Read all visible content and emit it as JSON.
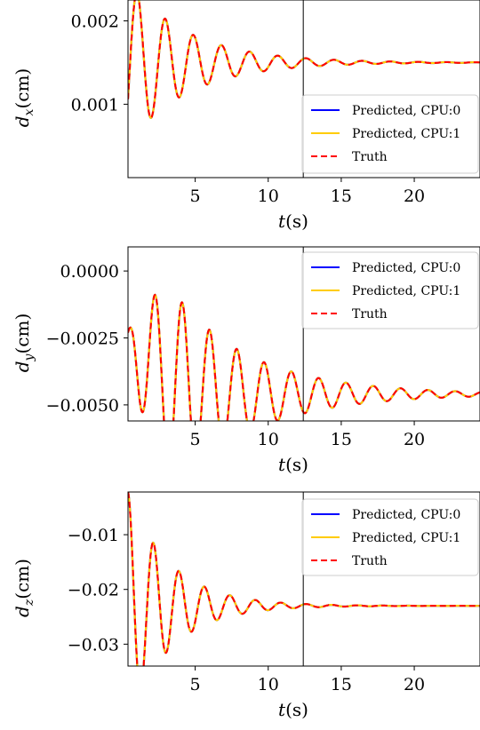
{
  "chart_data": [
    {
      "type": "line",
      "id": "dx",
      "ylabel": {
        "var": "d",
        "sub": "x",
        "unit": "(cm)"
      },
      "xlabel": {
        "var": "t",
        "unit": "(s)"
      },
      "xlim": [
        0.4,
        24.5
      ],
      "ylim": [
        0.00012,
        0.00225
      ],
      "x_ticks": [
        5,
        10,
        15,
        20
      ],
      "x_tick_labels": [
        "5",
        "10",
        "15",
        "20"
      ],
      "y_ticks": [
        0.001,
        0.002
      ],
      "y_tick_labels": [
        "0.001",
        "0.002"
      ],
      "vline_x": 12.4,
      "signal": {
        "equilibrium": 0.0015,
        "amplitude": 0.00097,
        "decay": 0.24,
        "omega": 3.26,
        "phase": -2.04
      },
      "legend": {
        "placement": "lower right",
        "entries": [
          {
            "label": "Predicted, CPU:0",
            "color": "#0000ff",
            "style": "solid"
          },
          {
            "label": "Predicted, CPU:1",
            "color": "#ffcc00",
            "style": "solid"
          },
          {
            "label": "Truth",
            "color": "#ff0000",
            "style": "dashed"
          }
        ]
      },
      "series": [
        {
          "name": "Predicted, CPU:0",
          "color": "#0000ff",
          "dashed": false
        },
        {
          "name": "Predicted, CPU:1",
          "color": "#ffcc00",
          "dashed": false
        },
        {
          "name": "Truth",
          "color": "#ff0000",
          "dashed": true
        }
      ]
    },
    {
      "type": "line",
      "id": "dy",
      "ylabel": {
        "var": "d",
        "sub": "y",
        "unit": "(cm)"
      },
      "xlabel": {
        "var": "t",
        "unit": "(s)"
      },
      "xlim": [
        0.4,
        24.5
      ],
      "ylim": [
        -0.0056,
        0.0009
      ],
      "x_ticks": [
        5,
        10,
        15,
        20
      ],
      "x_tick_labels": [
        "5",
        "10",
        "15",
        "20"
      ],
      "y_ticks": [
        0.0,
        -0.0025,
        -0.005
      ],
      "y_tick_labels": [
        "0.0000",
        "−0.0025",
        "−0.0050"
      ],
      "vline_x": 12.4,
      "signal": {
        "equilibrium": -0.0023,
        "amplitude": 0.00355,
        "envelope": "beat",
        "rise": 0.9,
        "decay": 0.18,
        "omega": 3.36,
        "phase": 0.1
      },
      "legend": {
        "placement": "top right",
        "entries": [
          {
            "label": "Predicted, CPU:0",
            "color": "#0000ff",
            "style": "solid"
          },
          {
            "label": "Predicted, CPU:1",
            "color": "#ffcc00",
            "style": "solid"
          },
          {
            "label": "Truth",
            "color": "#ff0000",
            "style": "dashed"
          }
        ]
      },
      "series": [
        {
          "name": "Predicted, CPU:0",
          "color": "#0000ff",
          "dashed": false
        },
        {
          "name": "Predicted, CPU:1",
          "color": "#ffcc00",
          "dashed": false
        },
        {
          "name": "Truth",
          "color": "#ff0000",
          "dashed": true
        }
      ]
    },
    {
      "type": "line",
      "id": "dz",
      "ylabel": {
        "var": "d",
        "sub": "z",
        "unit": "(cm)"
      },
      "xlabel": {
        "var": "t",
        "unit": "(s)"
      },
      "xlim": [
        0.4,
        24.5
      ],
      "ylim": [
        -0.034,
        -0.0022
      ],
      "x_ticks": [
        5,
        10,
        15,
        20
      ],
      "x_tick_labels": [
        "5",
        "10",
        "15",
        "20"
      ],
      "y_ticks": [
        -0.01,
        -0.02,
        -0.03
      ],
      "y_tick_labels": [
        "−0.01",
        "−0.02",
        "−0.03"
      ],
      "vline_x": 12.4,
      "signal": {
        "equilibrium": -0.023,
        "amplitude": 0.0208,
        "decay": 0.34,
        "omega": 3.6,
        "phase": 0.0
      },
      "legend": {
        "placement": "top right",
        "entries": [
          {
            "label": "Predicted, CPU:0",
            "color": "#0000ff",
            "style": "solid"
          },
          {
            "label": "Predicted, CPU:1",
            "color": "#ffcc00",
            "style": "solid"
          },
          {
            "label": "Truth",
            "color": "#ff0000",
            "style": "dashed"
          }
        ]
      },
      "series": [
        {
          "name": "Predicted, CPU:0",
          "color": "#0000ff",
          "dashed": false
        },
        {
          "name": "Predicted, CPU:1",
          "color": "#ffcc00",
          "dashed": false
        },
        {
          "name": "Truth",
          "color": "#ff0000",
          "dashed": true
        }
      ]
    }
  ]
}
